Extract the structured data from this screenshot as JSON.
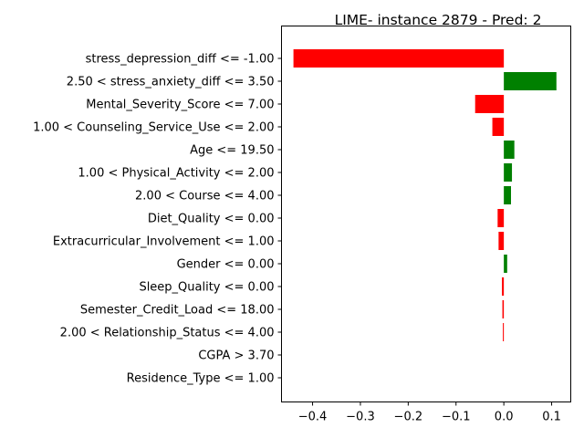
{
  "chart_data": {
    "type": "bar",
    "orientation": "horizontal",
    "title": "LIME- instance 2879 - Pred: 2",
    "xlabel": "",
    "ylabel": "",
    "xlim": [
      -0.465,
      0.14
    ],
    "xticks": [
      -0.4,
      -0.3,
      -0.2,
      -0.1,
      0.0,
      0.1
    ],
    "xtick_labels": [
      "−0.4",
      "−0.3",
      "−0.2",
      "−0.1",
      "0.0",
      "0.1"
    ],
    "categories": [
      "stress_depression_diff <= -1.00",
      "2.50 < stress_anxiety_diff <= 3.50",
      "Mental_Severity_Score <= 7.00",
      "1.00 < Counseling_Service_Use <= 2.00",
      "Age <= 19.50",
      "1.00 < Physical_Activity <= 2.00",
      "2.00 < Course <= 4.00",
      "Diet_Quality <= 0.00",
      "Extracurricular_Involvement <= 1.00",
      "Gender <= 0.00",
      "Sleep_Quality <= 0.00",
      "Semester_Credit_Load <= 18.00",
      "2.00 < Relationship_Status <= 4.00",
      "CGPA > 3.70",
      "Residence_Type <= 1.00"
    ],
    "values": [
      -0.44,
      0.11,
      -0.06,
      -0.024,
      0.022,
      0.017,
      0.015,
      -0.013,
      -0.011,
      0.007,
      -0.004,
      -0.003,
      -0.002,
      0.0,
      0.0
    ],
    "colors": {
      "positive": "#008000",
      "negative": "#ff0000"
    },
    "grid": false,
    "legend": "none"
  }
}
